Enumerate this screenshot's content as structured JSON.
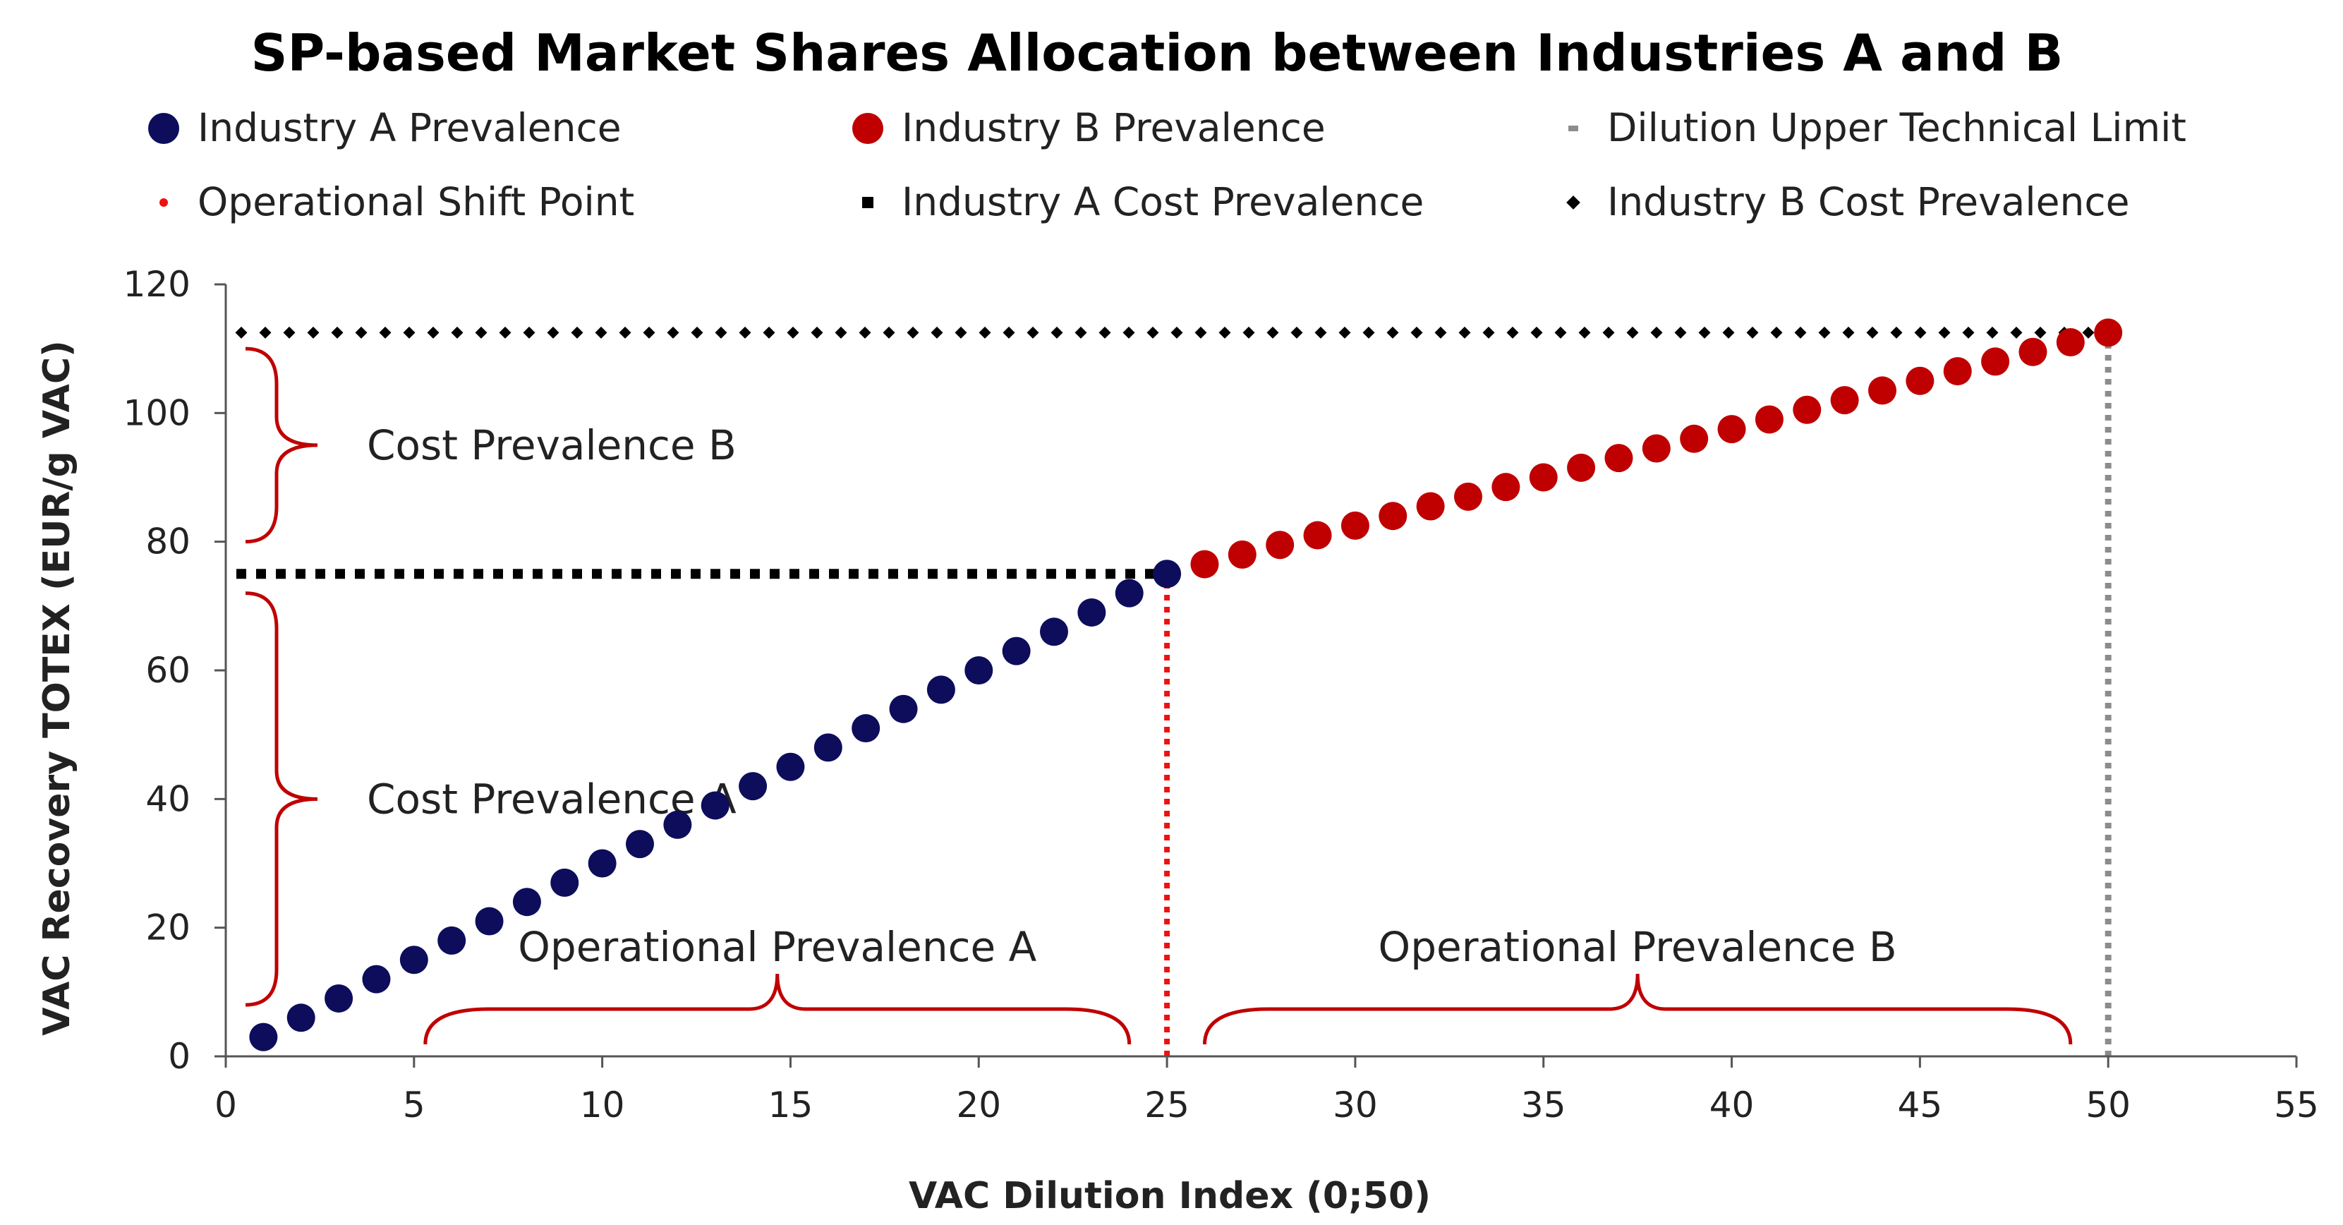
{
  "chart_data": {
    "type": "scatter",
    "title": "SP-based Market Shares Allocation between Industries A and B",
    "xlabel": "VAC Dilution Index (0;50)",
    "ylabel": "VAC Recovery TOTEX (EUR/g VAC)",
    "xlim": [
      0,
      55
    ],
    "ylim": [
      0,
      120
    ],
    "xticks": [
      "0",
      "5",
      "10",
      "15",
      "20",
      "25",
      "30",
      "35",
      "40",
      "45",
      "50",
      "55"
    ],
    "yticks": [
      "0",
      "20",
      "40",
      "60",
      "80",
      "100",
      "120"
    ],
    "legend": [
      {
        "label": "Industry A Prevalence",
        "marker": "circle",
        "color": "#0d0d5c"
      },
      {
        "label": "Industry B Prevalence",
        "marker": "circle",
        "color": "#c00000"
      },
      {
        "label": "Dilution Upper Technical Limit",
        "marker": "dash",
        "color": "#8c8c8c"
      },
      {
        "label": "Operational Shift Point",
        "marker": "dot",
        "color": "#ee1111"
      },
      {
        "label": "Industry A Cost Prevalence",
        "marker": "square",
        "color": "#000000"
      },
      {
        "label": "Industry B Cost Prevalence",
        "marker": "diamond",
        "color": "#000000"
      }
    ],
    "series": [
      {
        "name": "Industry A Prevalence",
        "color": "#0d0d5c",
        "x": [
          1,
          2,
          3,
          4,
          5,
          6,
          7,
          8,
          9,
          10,
          11,
          12,
          13,
          14,
          15,
          16,
          17,
          18,
          19,
          20,
          21,
          22,
          23,
          24,
          25
        ],
        "y": [
          3,
          6,
          9,
          12,
          15,
          18,
          21,
          24,
          27,
          30,
          33,
          36,
          39,
          42,
          45,
          48,
          51,
          54,
          57,
          60,
          63,
          66,
          69,
          72,
          75
        ]
      },
      {
        "name": "Industry B Prevalence",
        "color": "#c00000",
        "x": [
          26,
          27,
          28,
          29,
          30,
          31,
          32,
          33,
          34,
          35,
          36,
          37,
          38,
          39,
          40,
          41,
          42,
          43,
          44,
          45,
          46,
          47,
          48,
          49,
          50
        ],
        "y": [
          76.5,
          78,
          79.5,
          81,
          82.5,
          84,
          85.5,
          87,
          88.5,
          90,
          91.5,
          93,
          94.5,
          96,
          97.5,
          99,
          100.5,
          102,
          103.5,
          105,
          106.5,
          108,
          109.5,
          111,
          112.5
        ]
      }
    ],
    "reference_lines": [
      {
        "name": "Dilution Upper Technical Limit",
        "x": 50,
        "y_range": [
          0,
          112.5
        ],
        "color": "#8c8c8c"
      },
      {
        "name": "Operational Shift Point",
        "x": 25,
        "y_range": [
          0,
          75
        ],
        "color": "#ee1111"
      },
      {
        "name": "Industry A Cost Prevalence",
        "y": 75,
        "x_range": [
          0,
          25
        ],
        "color": "#000000"
      },
      {
        "name": "Industry B Cost Prevalence",
        "y": 112.5,
        "x_range": [
          0,
          50
        ],
        "color": "#000000"
      }
    ],
    "annotations": [
      {
        "text": "Cost Prevalence B",
        "axis": "y",
        "range": [
          80,
          110
        ],
        "color": "#c00000"
      },
      {
        "text": "Cost Prevalence A",
        "axis": "y",
        "range": [
          8,
          72
        ],
        "color": "#c00000"
      },
      {
        "text": "Operational Prevalence A",
        "axis": "x",
        "range": [
          5.3,
          24
        ],
        "color": "#c00000"
      },
      {
        "text": "Operational Prevalence B",
        "axis": "x",
        "range": [
          26,
          49
        ],
        "color": "#c00000"
      }
    ]
  }
}
